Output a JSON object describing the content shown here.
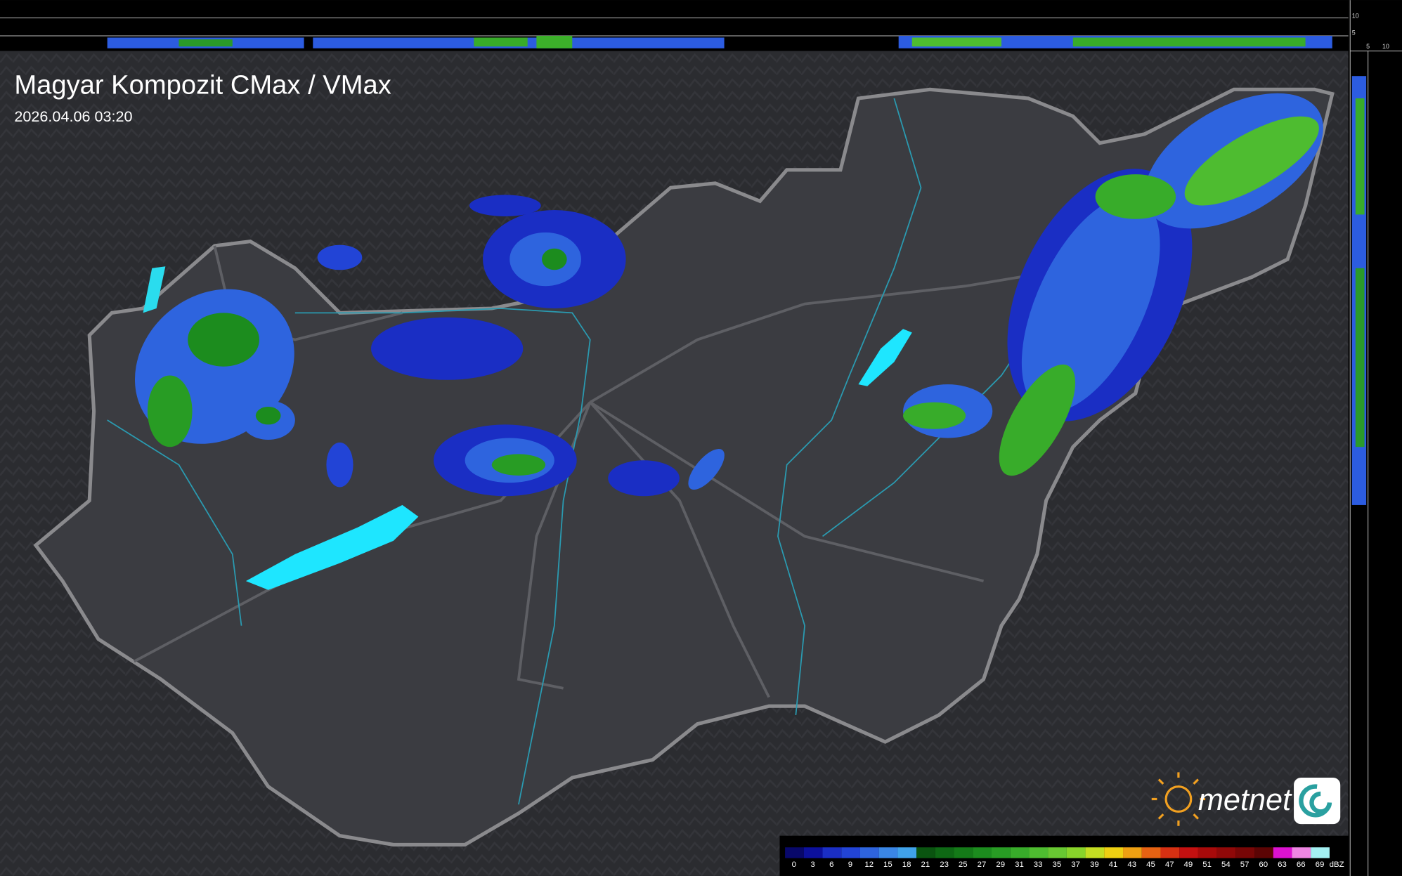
{
  "header": {
    "title": "Magyar Kompozit CMax / VMax",
    "timestamp": "2026.04.06 03:20"
  },
  "logo": {
    "text": "metnet"
  },
  "profile_axes": {
    "top": [
      10,
      5
    ],
    "right": [
      5,
      10
    ]
  },
  "legend": {
    "unit": "dBZ",
    "labels": [
      0,
      3,
      6,
      9,
      12,
      15,
      18,
      21,
      23,
      25,
      27,
      29,
      31,
      33,
      35,
      37,
      39,
      41,
      43,
      45,
      47,
      49,
      51,
      54,
      57,
      60,
      63,
      66,
      69
    ],
    "colors": [
      "#08086a",
      "#0c109c",
      "#1a2ec4",
      "#2244d6",
      "#2e64de",
      "#3a86e6",
      "#40a2ea",
      "#0a5410",
      "#0e6814",
      "#147a18",
      "#1c8c1e",
      "#289c24",
      "#38ac2a",
      "#4ebc30",
      "#68c832",
      "#88d42a",
      "#c4de22",
      "#eed012",
      "#eea012",
      "#e66212",
      "#d63012",
      "#c41010",
      "#a80a0a",
      "#900808",
      "#780606",
      "#5c0404",
      "#dc12d0",
      "#ee86e2",
      "#a4f0f2"
    ]
  }
}
